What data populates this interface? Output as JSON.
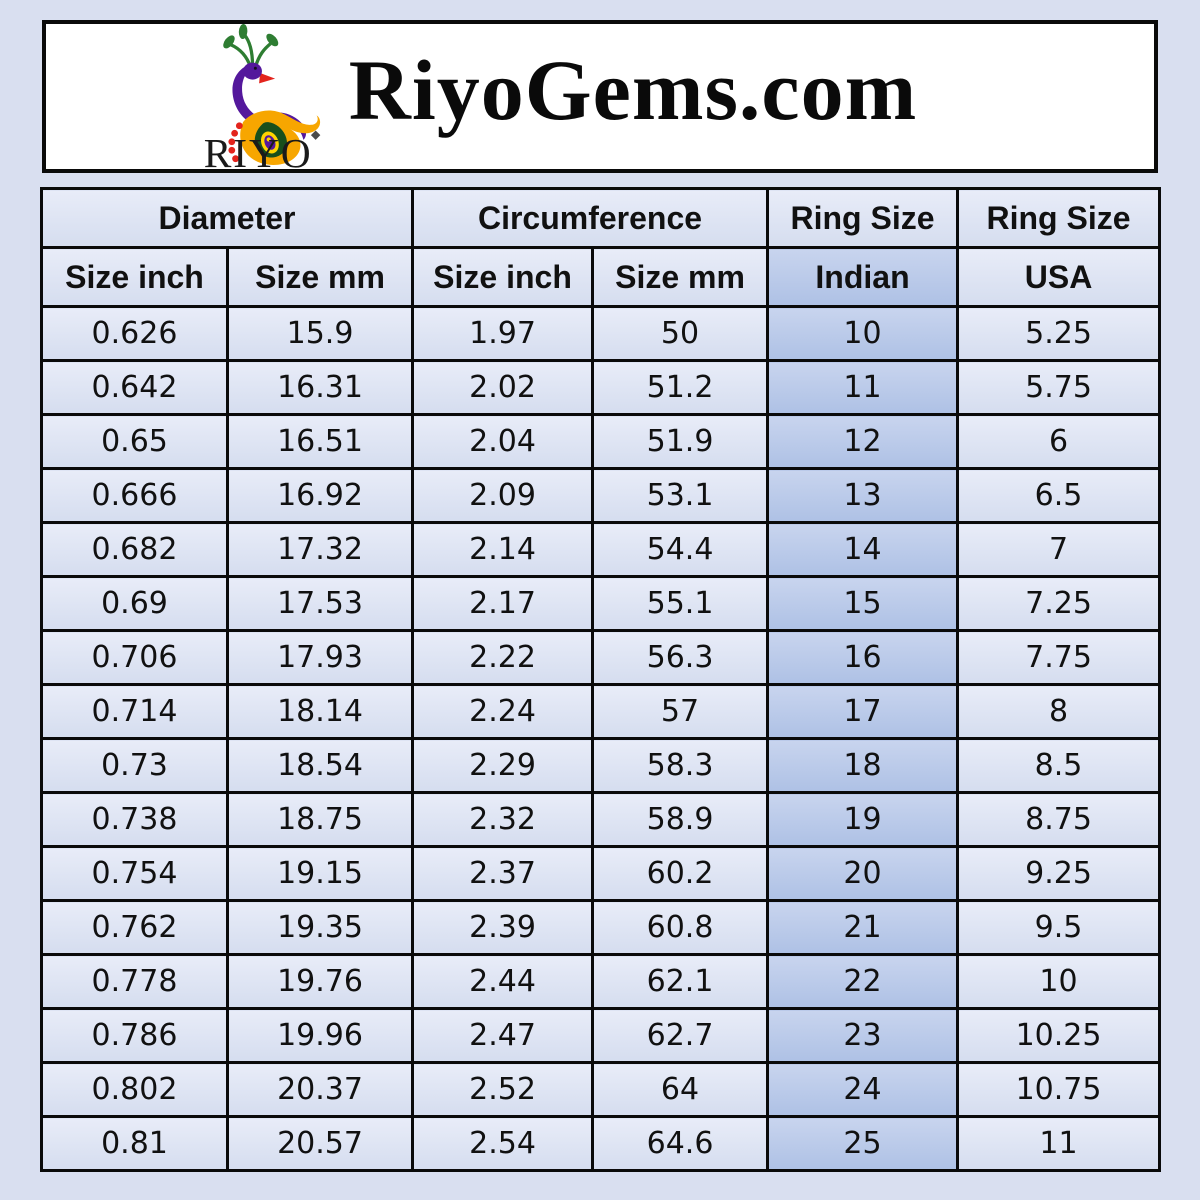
{
  "header": {
    "title": "RiyoGems.com",
    "brand": "RIYO"
  },
  "chart_data": {
    "type": "table",
    "title": "RiyoGems.com ring size conversion chart",
    "column_groups": [
      {
        "label": "Diameter",
        "span": 2
      },
      {
        "label": "Circumference",
        "span": 2
      },
      {
        "label": "Ring Size",
        "span": 1
      },
      {
        "label": "Ring Size",
        "span": 1
      }
    ],
    "columns": [
      "Size inch",
      "Size mm",
      "Size inch",
      "Size mm",
      "Indian",
      "USA"
    ],
    "column_keys": [
      "diameter-size-inch",
      "diameter-size-mm",
      "circumference-size-inch",
      "circumference-size-mm",
      "ring-size-indian",
      "ring-size-usa"
    ],
    "highlighted_column_index": 4,
    "highlighted_column": "Indian",
    "rows": [
      [
        "0.626",
        "15.9",
        "1.97",
        "50",
        "10",
        "5.25"
      ],
      [
        "0.642",
        "16.31",
        "2.02",
        "51.2",
        "11",
        "5.75"
      ],
      [
        "0.65",
        "16.51",
        "2.04",
        "51.9",
        "12",
        "6"
      ],
      [
        "0.666",
        "16.92",
        "2.09",
        "53.1",
        "13",
        "6.5"
      ],
      [
        "0.682",
        "17.32",
        "2.14",
        "54.4",
        "14",
        "7"
      ],
      [
        "0.69",
        "17.53",
        "2.17",
        "55.1",
        "15",
        "7.25"
      ],
      [
        "0.706",
        "17.93",
        "2.22",
        "56.3",
        "16",
        "7.75"
      ],
      [
        "0.714",
        "18.14",
        "2.24",
        "57",
        "17",
        "8"
      ],
      [
        "0.73",
        "18.54",
        "2.29",
        "58.3",
        "18",
        "8.5"
      ],
      [
        "0.738",
        "18.75",
        "2.32",
        "58.9",
        "19",
        "8.75"
      ],
      [
        "0.754",
        "19.15",
        "2.37",
        "60.2",
        "20",
        "9.25"
      ],
      [
        "0.762",
        "19.35",
        "2.39",
        "60.8",
        "21",
        "9.5"
      ],
      [
        "0.778",
        "19.76",
        "2.44",
        "62.1",
        "22",
        "10"
      ],
      [
        "0.786",
        "19.96",
        "2.47",
        "62.7",
        "23",
        "10.25"
      ],
      [
        "0.802",
        "20.37",
        "2.52",
        "64",
        "24",
        "10.75"
      ],
      [
        "0.81",
        "20.57",
        "2.54",
        "64.6",
        "25",
        "11"
      ]
    ]
  },
  "colors": {
    "page_bg": "#d9dff0",
    "header_bg": "#ffffff",
    "border": "#0a0a0a",
    "cell_light_top": "#e8ecf8",
    "cell_light_bottom": "#d5ddef",
    "cell_highlight_top": "#c8d4ee",
    "cell_highlight_bottom": "#aec1e5",
    "logo_purple": "#54189c",
    "logo_green": "#2e7d32",
    "logo_orange": "#f7a600",
    "logo_red": "#e3241d",
    "logo_yellow": "#ffd400"
  }
}
